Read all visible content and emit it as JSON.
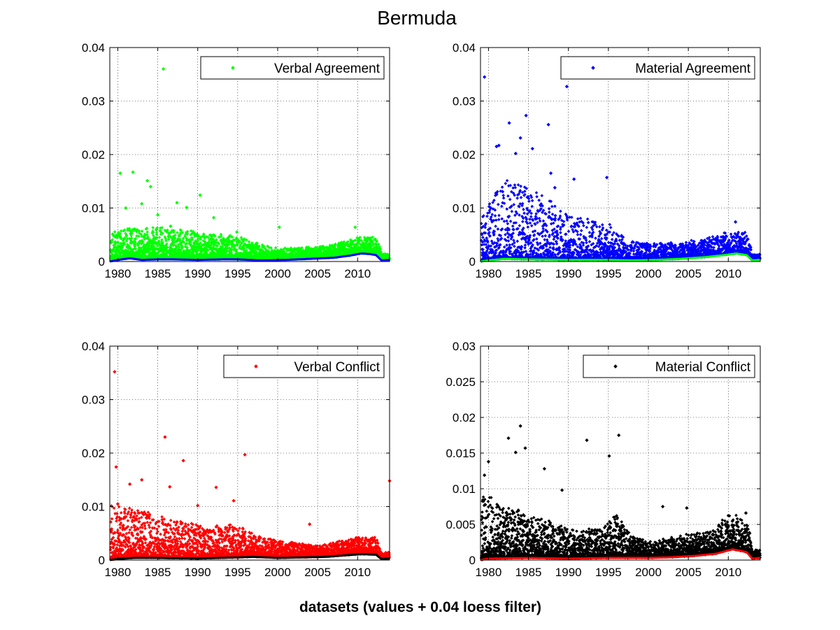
{
  "figure": {
    "title": "Bermuda",
    "caption": "datasets (values + 0.04 loess filter)"
  },
  "chart_data": [
    {
      "type": "scatter",
      "legend": "Verbal Agreement",
      "legend_location": "top-right",
      "grid": true,
      "xlim": [
        1979,
        2014
      ],
      "ylim": [
        0,
        0.04
      ],
      "xticks": [
        1980,
        1985,
        1990,
        1995,
        2000,
        2005,
        2010
      ],
      "yticks": [
        "0",
        "0.01",
        "0.02",
        "0.03",
        "0.04"
      ],
      "yticks_values": [
        0,
        0.01,
        0.02,
        0.03,
        0.04
      ],
      "point_color": "#00ff00",
      "line_color": "#0000ff",
      "baseline_points": [
        [
          1979.0,
          0.0
        ],
        [
          1980.0,
          0.0003
        ],
        [
          1981.5,
          0.0006
        ],
        [
          1983.0,
          0.0003
        ],
        [
          1985.0,
          0.0004
        ],
        [
          1987.0,
          0.0004
        ],
        [
          1990.0,
          0.0003
        ],
        [
          1993.0,
          0.0004
        ],
        [
          1995.0,
          0.0004
        ],
        [
          1998.0,
          0.0002
        ],
        [
          2001.0,
          0.0003
        ],
        [
          2004.0,
          0.0005
        ],
        [
          2007.0,
          0.0007
        ],
        [
          2009.0,
          0.0011
        ],
        [
          2010.5,
          0.0015
        ],
        [
          2011.5,
          0.0014
        ],
        [
          2012.3,
          0.0012
        ],
        [
          2013.0,
          0.0002
        ],
        [
          2014.0,
          0.0003
        ]
      ],
      "outliers": [
        [
          1980.3,
          0.0165
        ],
        [
          1981.9,
          0.0167
        ],
        [
          1985.7,
          0.036
        ],
        [
          1983.7,
          0.0151
        ],
        [
          1984.1,
          0.014
        ],
        [
          1981.0,
          0.01
        ],
        [
          1983.0,
          0.0108
        ],
        [
          1987.4,
          0.011
        ],
        [
          1990.3,
          0.0124
        ],
        [
          1988.6,
          0.0101
        ],
        [
          1992.0,
          0.0082
        ],
        [
          2000.2,
          0.0064
        ],
        [
          2009.7,
          0.0064
        ],
        [
          1994.9,
          0.0055
        ],
        [
          1985.0,
          0.0087
        ],
        [
          1986.6,
          0.0066
        ]
      ],
      "scatter_profile": [
        [
          1979.0,
          0.005
        ],
        [
          1985.0,
          0.006
        ],
        [
          1990.0,
          0.005
        ],
        [
          1995.0,
          0.004
        ],
        [
          2000.0,
          0.002
        ],
        [
          2005.0,
          0.002
        ],
        [
          2010.0,
          0.003
        ],
        [
          2012.5,
          0.003
        ],
        [
          2013.0,
          0.001
        ],
        [
          2014.0,
          0.001
        ]
      ],
      "density": 2.6
    },
    {
      "type": "scatter",
      "legend": "Material Agreement",
      "legend_location": "top-right",
      "grid": true,
      "xlim": [
        1979,
        2014
      ],
      "ylim": [
        0,
        0.04
      ],
      "xticks": [
        1980,
        1985,
        1990,
        1995,
        2000,
        2005,
        2010
      ],
      "yticks": [
        "0",
        "0.01",
        "0.02",
        "0.03",
        "0.04"
      ],
      "yticks_values": [
        0,
        0.01,
        0.02,
        0.03,
        0.04
      ],
      "point_color": "#0000ff",
      "line_color": "#00ff00",
      "baseline_points": [
        [
          1979.0,
          0.0
        ],
        [
          1980.0,
          0.0002
        ],
        [
          1982.0,
          0.0005
        ],
        [
          1985.0,
          0.0004
        ],
        [
          1990.0,
          0.0003
        ],
        [
          1995.0,
          0.0003
        ],
        [
          1998.0,
          0.0002
        ],
        [
          2001.0,
          0.0003
        ],
        [
          2004.0,
          0.0005
        ],
        [
          2007.0,
          0.0008
        ],
        [
          2009.5,
          0.0012
        ],
        [
          2011.0,
          0.0015
        ],
        [
          2012.3,
          0.0012
        ],
        [
          2013.0,
          0.0002
        ],
        [
          2014.0,
          0.0003
        ]
      ],
      "outliers": [
        [
          1979.5,
          0.0345
        ],
        [
          1989.8,
          0.0327
        ],
        [
          1984.7,
          0.0273
        ],
        [
          1982.6,
          0.0259
        ],
        [
          1987.5,
          0.0256
        ],
        [
          1981.3,
          0.0217
        ],
        [
          1984.0,
          0.0231
        ],
        [
          1985.5,
          0.0211
        ],
        [
          1983.4,
          0.0202
        ],
        [
          1987.8,
          0.0165
        ],
        [
          1994.8,
          0.0157
        ],
        [
          1990.7,
          0.0154
        ],
        [
          2010.9,
          0.0074
        ],
        [
          1981.0,
          0.0215
        ],
        [
          1988.3,
          0.0138
        ]
      ],
      "scatter_profile": [
        [
          1979.0,
          0.008
        ],
        [
          1982.0,
          0.015
        ],
        [
          1987.0,
          0.012
        ],
        [
          1990.0,
          0.008
        ],
        [
          1995.0,
          0.007
        ],
        [
          1997.0,
          0.004
        ],
        [
          2000.0,
          0.003
        ],
        [
          2005.0,
          0.003
        ],
        [
          2010.0,
          0.004
        ],
        [
          2012.5,
          0.004
        ],
        [
          2013.0,
          0.001
        ],
        [
          2014.0,
          0.001
        ]
      ],
      "density": 1.9
    },
    {
      "type": "scatter",
      "legend": "Verbal Conflict",
      "legend_location": "top-right",
      "grid": true,
      "xlim": [
        1979,
        2014
      ],
      "ylim": [
        0,
        0.04
      ],
      "xticks": [
        1980,
        1985,
        1990,
        1995,
        2000,
        2005,
        2010
      ],
      "yticks": [
        "0",
        "0.01",
        "0.02",
        "0.03",
        "0.04"
      ],
      "yticks_values": [
        0,
        0.01,
        0.02,
        0.03,
        0.04
      ],
      "point_color": "#ff0000",
      "line_color": "#000000",
      "baseline_points": [
        [
          1979.0,
          0.0
        ],
        [
          1980.0,
          0.0002
        ],
        [
          1982.0,
          0.0004
        ],
        [
          1985.0,
          0.0004
        ],
        [
          1990.0,
          0.0003
        ],
        [
          1995.0,
          0.0005
        ],
        [
          1997.0,
          0.0006
        ],
        [
          2000.0,
          0.0004
        ],
        [
          2003.0,
          0.0005
        ],
        [
          2006.0,
          0.0006
        ],
        [
          2008.5,
          0.0009
        ],
        [
          2010.5,
          0.0011
        ],
        [
          2012.3,
          0.001
        ],
        [
          2013.0,
          0.0002
        ],
        [
          2014.0,
          0.0003
        ]
      ],
      "outliers": [
        [
          1979.6,
          0.0352
        ],
        [
          1985.9,
          0.023
        ],
        [
          1995.9,
          0.0197
        ],
        [
          1988.2,
          0.0186
        ],
        [
          1979.8,
          0.0174
        ],
        [
          1983.0,
          0.015
        ],
        [
          1992.3,
          0.0136
        ],
        [
          1986.5,
          0.0137
        ],
        [
          2014.0,
          0.0148
        ],
        [
          1981.5,
          0.0142
        ],
        [
          1994.5,
          0.0111
        ],
        [
          2004.0,
          0.0067
        ],
        [
          1990.0,
          0.0102
        ],
        [
          1980.0,
          0.0105
        ]
      ],
      "scatter_profile": [
        [
          1979.0,
          0.01
        ],
        [
          1985.0,
          0.008
        ],
        [
          1990.0,
          0.006
        ],
        [
          1995.0,
          0.006
        ],
        [
          1997.0,
          0.004
        ],
        [
          2000.0,
          0.003
        ],
        [
          2005.0,
          0.002
        ],
        [
          2010.0,
          0.003
        ],
        [
          2012.5,
          0.003
        ],
        [
          2013.0,
          0.001
        ],
        [
          2014.0,
          0.001
        ]
      ],
      "density": 2.3
    },
    {
      "type": "scatter",
      "legend": "Material Conflict",
      "legend_location": "top-right",
      "grid": true,
      "xlim": [
        1979,
        2014
      ],
      "ylim": [
        0,
        0.03
      ],
      "xticks": [
        1980,
        1985,
        1990,
        1995,
        2000,
        2005,
        2010
      ],
      "yticks": [
        "0",
        "0.005",
        "0.01",
        "0.015",
        "0.02",
        "0.025",
        "0.03"
      ],
      "yticks_values": [
        0,
        0.005,
        0.01,
        0.015,
        0.02,
        0.025,
        0.03
      ],
      "point_color": "#000000",
      "line_color": "#ff0000",
      "baseline_points": [
        [
          1979.0,
          0.0
        ],
        [
          1980.0,
          0.0002
        ],
        [
          1985.0,
          0.0003
        ],
        [
          1990.0,
          0.0002
        ],
        [
          1995.0,
          0.0003
        ],
        [
          2000.0,
          0.0003
        ],
        [
          2003.0,
          0.0004
        ],
        [
          2006.0,
          0.0006
        ],
        [
          2008.5,
          0.0009
        ],
        [
          2010.5,
          0.0015
        ],
        [
          2011.5,
          0.0013
        ],
        [
          2012.3,
          0.0011
        ],
        [
          2013.0,
          0.0002
        ],
        [
          2014.0,
          0.0003
        ]
      ],
      "outliers": [
        [
          1984.0,
          0.0188
        ],
        [
          1982.5,
          0.0171
        ],
        [
          1996.3,
          0.0175
        ],
        [
          1992.3,
          0.0168
        ],
        [
          1983.4,
          0.0151
        ],
        [
          1984.6,
          0.0157
        ],
        [
          1995.1,
          0.0146
        ],
        [
          1980.0,
          0.0138
        ],
        [
          1987.0,
          0.0128
        ],
        [
          1979.5,
          0.0119
        ],
        [
          2001.8,
          0.0075
        ],
        [
          2004.8,
          0.0073
        ],
        [
          2012.2,
          0.0066
        ],
        [
          1989.2,
          0.0098
        ]
      ],
      "scatter_profile": [
        [
          1979.0,
          0.009
        ],
        [
          1985.0,
          0.006
        ],
        [
          1990.0,
          0.004
        ],
        [
          1994.0,
          0.004
        ],
        [
          1996.0,
          0.006
        ],
        [
          1998.0,
          0.003
        ],
        [
          2000.0,
          0.002
        ],
        [
          2005.0,
          0.003
        ],
        [
          2008.0,
          0.003
        ],
        [
          2010.0,
          0.005
        ],
        [
          2012.5,
          0.004
        ],
        [
          2013.0,
          0.001
        ],
        [
          2014.0,
          0.001
        ]
      ],
      "density": 2.4
    }
  ]
}
